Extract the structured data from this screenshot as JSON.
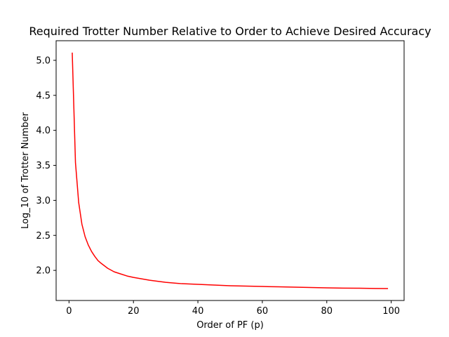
{
  "chart_data": {
    "type": "line",
    "title": "Required Trotter Number Relative to Order to Achieve Desired Accuracy",
    "xlabel": "Order of PF (p)",
    "ylabel": "Log_10 of Trotter Number",
    "xlim": [
      -4,
      104
    ],
    "ylim": [
      1.57,
      5.28
    ],
    "xticks": [
      0,
      20,
      40,
      60,
      80,
      100
    ],
    "yticks": [
      2.0,
      2.5,
      3.0,
      3.5,
      4.0,
      4.5,
      5.0
    ],
    "grid": false,
    "series": [
      {
        "color": "#ff0000",
        "x": [
          1,
          2,
          3,
          4,
          5,
          6,
          7,
          8,
          9,
          10,
          12,
          14,
          16,
          18,
          20,
          25,
          30,
          35,
          40,
          45,
          50,
          55,
          60,
          65,
          70,
          75,
          80,
          85,
          90,
          95,
          99
        ],
        "y": [
          5.11,
          3.54,
          2.97,
          2.66,
          2.48,
          2.36,
          2.27,
          2.2,
          2.14,
          2.1,
          2.03,
          1.98,
          1.95,
          1.92,
          1.9,
          1.86,
          1.83,
          1.81,
          1.8,
          1.79,
          1.78,
          1.775,
          1.77,
          1.765,
          1.76,
          1.755,
          1.75,
          1.747,
          1.745,
          1.742,
          1.74
        ]
      }
    ]
  }
}
